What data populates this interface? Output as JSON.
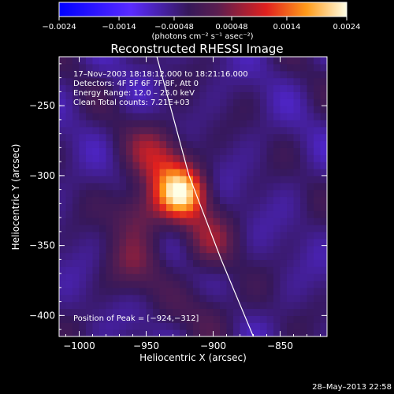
{
  "chart_data": {
    "type": "heatmap",
    "title": "Reconstructed RHESSI Image",
    "xlabel": "Heliocentric X (arcsec)",
    "ylabel": "Heliocentric Y (arcsec)",
    "xlim": [
      -1015,
      -815
    ],
    "ylim": [
      -415,
      -215
    ],
    "x_ticks": [
      -1000,
      -950,
      -900,
      -850
    ],
    "y_ticks": [
      -400,
      -350,
      -300,
      -250
    ],
    "x_tick_labels": [
      "−1000",
      "−950",
      "−900",
      "−850"
    ],
    "y_tick_labels": [
      "−400",
      "−350",
      "−300",
      "−250"
    ],
    "colorbar": {
      "range": [
        -0.0024,
        0.0024
      ],
      "ticks": [
        -0.0024,
        -0.0014,
        -0.00048,
        0.00048,
        0.0014,
        0.0024
      ],
      "tick_labels": [
        "−0.0024",
        "−0.0014",
        "−0.00048",
        "0.00048",
        "0.0014",
        "0.0024"
      ],
      "units": "(photons cm⁻² s⁻¹ asec⁻²)"
    },
    "annotations": {
      "time": "17–Nov–2003 18:18:12.000 to 18:21:16.000",
      "detectors": "Detectors: 4F 5F 6F 7F 8F, Att 0",
      "energy": "Energy Range: 12.0 – 25.0 keV",
      "clean": "Clean    Total counts: 7.21E+03",
      "peak": "Position of Peak = [−924,−312]"
    },
    "peak": {
      "x": -924,
      "y": -312
    },
    "limb_line": [
      [
        -942,
        -215
      ],
      [
        -918,
        -300
      ],
      [
        -894,
        -360
      ],
      [
        -870,
        -415
      ]
    ],
    "source_components": [
      {
        "x": -924,
        "y": -312,
        "sigma": 13,
        "amp": 0.0024
      },
      {
        "x": -940,
        "y": -285,
        "sigma": 16,
        "amp": 0.0011
      },
      {
        "x": -955,
        "y": -325,
        "sigma": 14,
        "amp": 0.0009
      },
      {
        "x": -905,
        "y": -345,
        "sigma": 15,
        "amp": 0.0008
      },
      {
        "x": -960,
        "y": -365,
        "sigma": 16,
        "amp": 0.0006
      },
      {
        "x": -900,
        "y": -395,
        "sigma": 14,
        "amp": 0.0005
      }
    ]
  },
  "footer": {
    "timestamp": "28–May–2013 22:58"
  }
}
